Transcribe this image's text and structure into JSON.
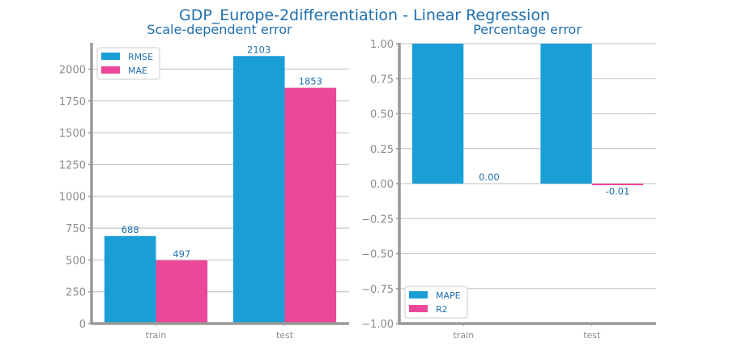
{
  "title": "GDP_Europe-2differentiation - Linear Regression",
  "colors": {
    "series_a": "#1a9ed6",
    "series_b": "#ec489a",
    "text": "#1f6fae",
    "axis": "#999999",
    "grid": "#cccccc"
  },
  "chart_data": [
    {
      "type": "bar",
      "title": "Scale-dependent error",
      "categories": [
        "train",
        "test"
      ],
      "series": [
        {
          "name": "RMSE",
          "values": [
            688,
            2103
          ],
          "labels": [
            "688",
            "2103"
          ]
        },
        {
          "name": "MAE",
          "values": [
            497,
            1853
          ],
          "labels": [
            "497",
            "1853"
          ]
        }
      ],
      "ylim": [
        0,
        2200
      ],
      "yticks": [
        0,
        250,
        500,
        750,
        1000,
        1250,
        1500,
        1750,
        2000
      ],
      "ytick_labels": [
        "0",
        "250",
        "500",
        "750",
        "1000",
        "1250",
        "1500",
        "1750",
        "2000"
      ],
      "grid": true,
      "legend": "top-left"
    },
    {
      "type": "bar",
      "title": "Percentage error",
      "categories": [
        "train",
        "test"
      ],
      "series": [
        {
          "name": "MAPE",
          "values": [
            1.0,
            1.0
          ],
          "labels": [
            "",
            ""
          ]
        },
        {
          "name": "R2",
          "values": [
            0.0,
            -0.01
          ],
          "labels": [
            "0.00",
            "-0.01"
          ]
        }
      ],
      "ylim": [
        -1.0,
        1.0
      ],
      "yticks": [
        -1.0,
        -0.75,
        -0.5,
        -0.25,
        0.0,
        0.25,
        0.5,
        0.75,
        1.0
      ],
      "ytick_labels": [
        "−1.00",
        "−0.75",
        "−0.50",
        "−0.25",
        "0.00",
        "0.25",
        "0.50",
        "0.75",
        "1.00"
      ],
      "grid": true,
      "legend": "bottom-left"
    }
  ]
}
